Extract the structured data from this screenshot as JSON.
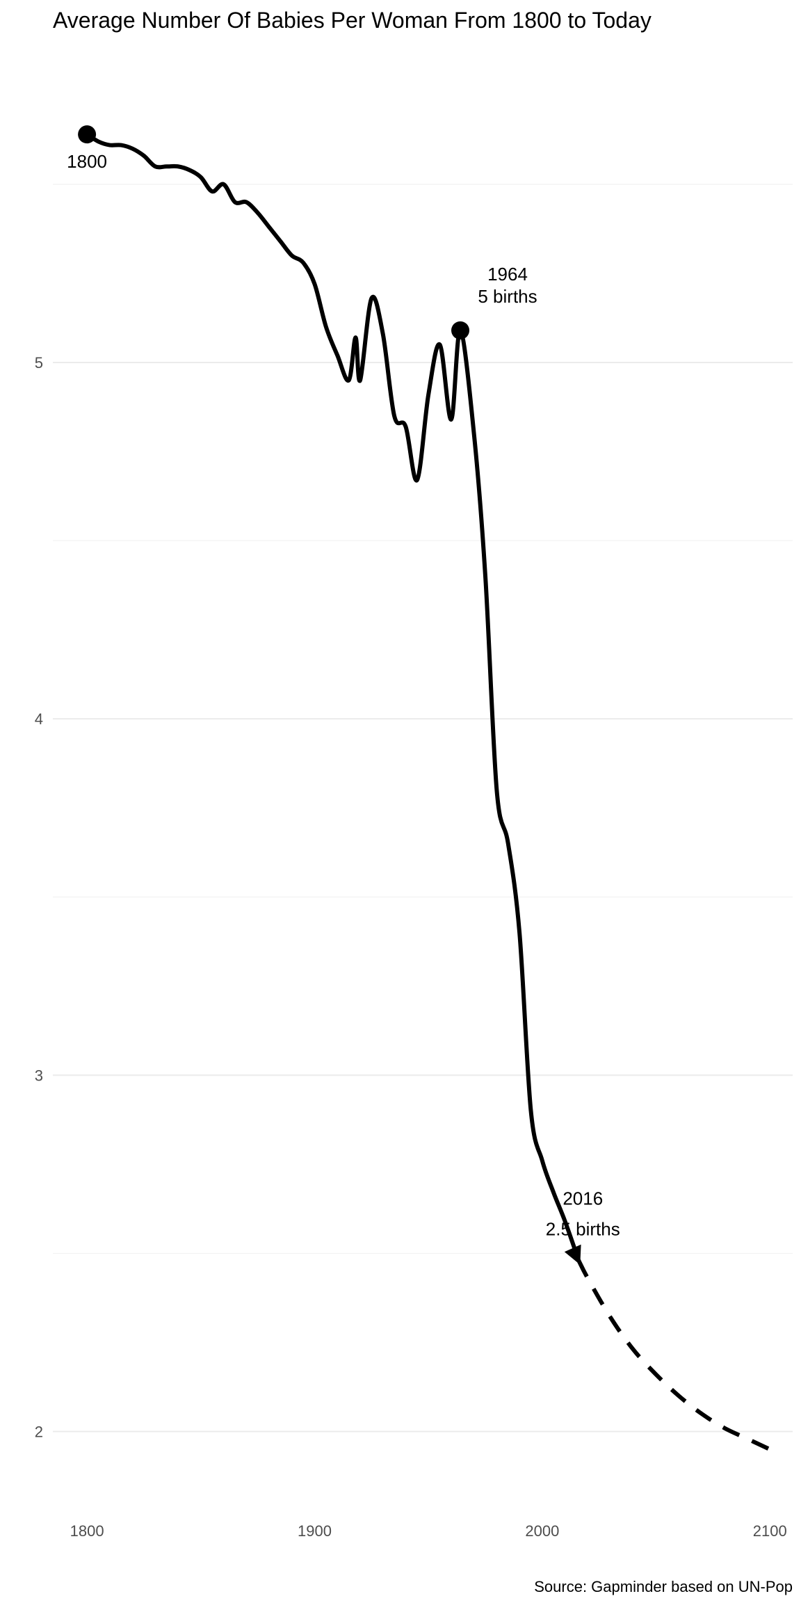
{
  "chart_data": {
    "type": "line",
    "title": "Average Number Of Babies Per Woman From 1800 to Today",
    "caption": "Source: Gapminder based on UN-Pop",
    "xlabel": "",
    "ylabel": "",
    "xlim": [
      1785,
      2110
    ],
    "ylim": [
      1.8,
      5.9
    ],
    "x_ticks": [
      1800,
      1900,
      2000,
      2100
    ],
    "y_ticks": [
      2,
      3,
      4,
      5
    ],
    "grid": true,
    "line_color": "#000000",
    "series": [
      {
        "style": "solid",
        "x": [
          1800,
          1805,
          1810,
          1815,
          1820,
          1825,
          1830,
          1835,
          1840,
          1845,
          1850,
          1855,
          1860,
          1865,
          1870,
          1875,
          1880,
          1885,
          1890,
          1895,
          1900,
          1905,
          1910,
          1915,
          1918,
          1920,
          1925,
          1930,
          1935,
          1940,
          1945,
          1950,
          1955,
          1960,
          1964,
          1970,
          1975,
          1980,
          1985,
          1990,
          1995,
          2000,
          2005,
          2010,
          2016
        ],
        "y": [
          5.64,
          5.62,
          5.61,
          5.61,
          5.6,
          5.58,
          5.55,
          5.55,
          5.55,
          5.54,
          5.52,
          5.48,
          5.5,
          5.45,
          5.45,
          5.42,
          5.38,
          5.34,
          5.3,
          5.28,
          5.22,
          5.1,
          5.02,
          4.95,
          5.07,
          4.95,
          5.18,
          5.08,
          4.85,
          4.82,
          4.67,
          4.91,
          5.05,
          4.84,
          5.09,
          4.8,
          4.4,
          3.8,
          3.65,
          3.4,
          2.9,
          2.76,
          2.67,
          2.59,
          2.48
        ]
      },
      {
        "style": "dashed",
        "x": [
          2016,
          2020,
          2030,
          2040,
          2050,
          2060,
          2070,
          2080,
          2090,
          2100
        ],
        "y": [
          2.48,
          2.43,
          2.32,
          2.23,
          2.16,
          2.1,
          2.05,
          2.01,
          1.98,
          1.95
        ]
      }
    ],
    "annotations": [
      {
        "x": 1800,
        "y": 5.64,
        "lines": [
          "1800"
        ],
        "marker": "point"
      },
      {
        "x": 1964,
        "y": 5.09,
        "lines": [
          "1964",
          "5 births"
        ],
        "marker": "point"
      },
      {
        "x": 2016,
        "y": 2.48,
        "lines": [
          "2016",
          "2.5 births"
        ],
        "marker": "arrow"
      }
    ]
  }
}
